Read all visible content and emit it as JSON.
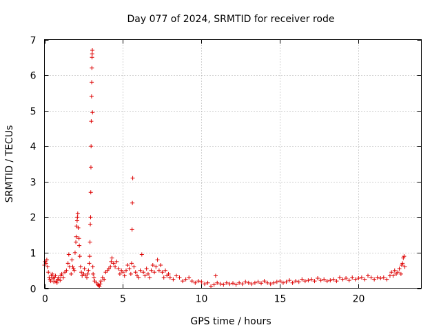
{
  "chart_data": {
    "type": "scatter",
    "title": "Day 077 of 2024, SRMTID for receiver rode",
    "xlabel": "GPS time / hours",
    "ylabel": "SRMTID / TECUs",
    "xlim": [
      0,
      24
    ],
    "ylim": [
      0,
      7
    ],
    "xticks": [
      0,
      5,
      10,
      15,
      20
    ],
    "yticks": [
      0,
      1,
      2,
      3,
      4,
      5,
      6,
      7
    ],
    "xtick_labels": [
      "0",
      "5",
      "10",
      "15",
      "20"
    ],
    "ytick_labels": [
      "0",
      "1",
      "2",
      "3",
      "4",
      "5",
      "6",
      "7"
    ],
    "grid": true,
    "marker": "+",
    "series": [
      {
        "name": "SRMTID",
        "color": "#dd0000",
        "points": [
          [
            0.0,
            0.65
          ],
          [
            0.05,
            0.75
          ],
          [
            0.1,
            0.7
          ],
          [
            0.15,
            0.8
          ],
          [
            0.2,
            0.6
          ],
          [
            0.25,
            0.45
          ],
          [
            0.3,
            0.3
          ],
          [
            0.35,
            0.25
          ],
          [
            0.4,
            0.2
          ],
          [
            0.45,
            0.35
          ],
          [
            0.5,
            0.4
          ],
          [
            0.55,
            0.28
          ],
          [
            0.6,
            0.18
          ],
          [
            0.65,
            0.3
          ],
          [
            0.7,
            0.35
          ],
          [
            0.75,
            0.2
          ],
          [
            0.8,
            0.15
          ],
          [
            0.85,
            0.25
          ],
          [
            0.9,
            0.3
          ],
          [
            1.0,
            0.22
          ],
          [
            1.05,
            0.35
          ],
          [
            1.1,
            0.4
          ],
          [
            1.2,
            0.3
          ],
          [
            1.3,
            0.45
          ],
          [
            1.4,
            0.5
          ],
          [
            1.5,
            0.7
          ],
          [
            1.55,
            0.95
          ],
          [
            1.6,
            0.6
          ],
          [
            1.7,
            0.4
          ],
          [
            1.75,
            0.8
          ],
          [
            1.8,
            0.6
          ],
          [
            1.85,
            0.55
          ],
          [
            1.9,
            0.5
          ],
          [
            1.95,
            1.0
          ],
          [
            2.0,
            1.3
          ],
          [
            2.02,
            1.45
          ],
          [
            2.05,
            1.75
          ],
          [
            2.08,
            1.9
          ],
          [
            2.1,
            2.0
          ],
          [
            2.12,
            2.1
          ],
          [
            2.15,
            1.7
          ],
          [
            2.2,
            1.4
          ],
          [
            2.22,
            1.2
          ],
          [
            2.25,
            0.9
          ],
          [
            2.3,
            0.6
          ],
          [
            2.35,
            0.45
          ],
          [
            2.4,
            0.35
          ],
          [
            2.5,
            0.4
          ],
          [
            2.55,
            0.55
          ],
          [
            2.6,
            0.35
          ],
          [
            2.7,
            0.3
          ],
          [
            2.75,
            0.4
          ],
          [
            2.8,
            0.5
          ],
          [
            2.85,
            0.7
          ],
          [
            2.88,
            0.9
          ],
          [
            2.9,
            1.3
          ],
          [
            2.92,
            1.8
          ],
          [
            2.94,
            2.0
          ],
          [
            2.95,
            2.7
          ],
          [
            2.96,
            3.4
          ],
          [
            2.97,
            4.0
          ],
          [
            2.98,
            4.7
          ],
          [
            3.0,
            5.4
          ],
          [
            3.01,
            5.8
          ],
          [
            3.02,
            6.2
          ],
          [
            3.03,
            6.5
          ],
          [
            3.04,
            6.6
          ],
          [
            3.05,
            6.7
          ],
          [
            3.06,
            4.95
          ],
          [
            3.08,
            0.6
          ],
          [
            3.1,
            0.4
          ],
          [
            3.15,
            0.3
          ],
          [
            3.2,
            0.2
          ],
          [
            3.3,
            0.15
          ],
          [
            3.4,
            0.1
          ],
          [
            3.45,
            0.08
          ],
          [
            3.5,
            0.05
          ],
          [
            3.55,
            0.12
          ],
          [
            3.6,
            0.2
          ],
          [
            3.7,
            0.3
          ],
          [
            3.8,
            0.25
          ],
          [
            3.9,
            0.45
          ],
          [
            4.0,
            0.5
          ],
          [
            4.1,
            0.55
          ],
          [
            4.2,
            0.6
          ],
          [
            4.25,
            0.75
          ],
          [
            4.3,
            0.85
          ],
          [
            4.4,
            0.7
          ],
          [
            4.5,
            0.6
          ],
          [
            4.6,
            0.75
          ],
          [
            4.7,
            0.55
          ],
          [
            4.8,
            0.4
          ],
          [
            4.9,
            0.5
          ],
          [
            5.0,
            0.45
          ],
          [
            5.1,
            0.35
          ],
          [
            5.2,
            0.5
          ],
          [
            5.3,
            0.65
          ],
          [
            5.4,
            0.55
          ],
          [
            5.5,
            0.4
          ],
          [
            5.55,
            0.7
          ],
          [
            5.58,
            1.65
          ],
          [
            5.6,
            2.4
          ],
          [
            5.62,
            3.1
          ],
          [
            5.7,
            0.6
          ],
          [
            5.8,
            0.45
          ],
          [
            5.9,
            0.35
          ],
          [
            6.0,
            0.3
          ],
          [
            6.1,
            0.5
          ],
          [
            6.2,
            0.95
          ],
          [
            6.3,
            0.45
          ],
          [
            6.4,
            0.35
          ],
          [
            6.5,
            0.55
          ],
          [
            6.6,
            0.4
          ],
          [
            6.7,
            0.3
          ],
          [
            6.8,
            0.5
          ],
          [
            6.9,
            0.65
          ],
          [
            7.0,
            0.45
          ],
          [
            7.1,
            0.6
          ],
          [
            7.2,
            0.8
          ],
          [
            7.3,
            0.5
          ],
          [
            7.4,
            0.65
          ],
          [
            7.5,
            0.45
          ],
          [
            7.6,
            0.3
          ],
          [
            7.7,
            0.5
          ],
          [
            7.8,
            0.35
          ],
          [
            7.9,
            0.4
          ],
          [
            8.0,
            0.3
          ],
          [
            8.2,
            0.25
          ],
          [
            8.4,
            0.35
          ],
          [
            8.6,
            0.3
          ],
          [
            8.8,
            0.2
          ],
          [
            9.0,
            0.25
          ],
          [
            9.2,
            0.3
          ],
          [
            9.4,
            0.2
          ],
          [
            9.6,
            0.15
          ],
          [
            9.8,
            0.2
          ],
          [
            10.0,
            0.18
          ],
          [
            10.2,
            0.12
          ],
          [
            10.4,
            0.15
          ],
          [
            10.6,
            0.05
          ],
          [
            10.8,
            0.1
          ],
          [
            10.9,
            0.35
          ],
          [
            11.0,
            0.15
          ],
          [
            11.2,
            0.12
          ],
          [
            11.4,
            0.1
          ],
          [
            11.6,
            0.15
          ],
          [
            11.8,
            0.12
          ],
          [
            12.0,
            0.14
          ],
          [
            12.2,
            0.1
          ],
          [
            12.4,
            0.15
          ],
          [
            12.6,
            0.12
          ],
          [
            12.8,
            0.18
          ],
          [
            13.0,
            0.15
          ],
          [
            13.2,
            0.12
          ],
          [
            13.4,
            0.15
          ],
          [
            13.6,
            0.18
          ],
          [
            13.8,
            0.14
          ],
          [
            14.0,
            0.2
          ],
          [
            14.2,
            0.15
          ],
          [
            14.4,
            0.12
          ],
          [
            14.6,
            0.15
          ],
          [
            14.8,
            0.18
          ],
          [
            15.0,
            0.2
          ],
          [
            15.2,
            0.15
          ],
          [
            15.4,
            0.18
          ],
          [
            15.6,
            0.22
          ],
          [
            15.8,
            0.15
          ],
          [
            16.0,
            0.2
          ],
          [
            16.2,
            0.18
          ],
          [
            16.4,
            0.25
          ],
          [
            16.6,
            0.2
          ],
          [
            16.8,
            0.22
          ],
          [
            17.0,
            0.25
          ],
          [
            17.2,
            0.2
          ],
          [
            17.4,
            0.28
          ],
          [
            17.6,
            0.22
          ],
          [
            17.8,
            0.25
          ],
          [
            18.0,
            0.2
          ],
          [
            18.2,
            0.22
          ],
          [
            18.4,
            0.25
          ],
          [
            18.6,
            0.2
          ],
          [
            18.8,
            0.3
          ],
          [
            19.0,
            0.25
          ],
          [
            19.2,
            0.28
          ],
          [
            19.4,
            0.22
          ],
          [
            19.6,
            0.3
          ],
          [
            19.8,
            0.25
          ],
          [
            20.0,
            0.28
          ],
          [
            20.2,
            0.3
          ],
          [
            20.4,
            0.25
          ],
          [
            20.6,
            0.35
          ],
          [
            20.8,
            0.3
          ],
          [
            21.0,
            0.25
          ],
          [
            21.2,
            0.3
          ],
          [
            21.4,
            0.28
          ],
          [
            21.6,
            0.3
          ],
          [
            21.8,
            0.25
          ],
          [
            22.0,
            0.35
          ],
          [
            22.1,
            0.45
          ],
          [
            22.2,
            0.35
          ],
          [
            22.3,
            0.5
          ],
          [
            22.4,
            0.4
          ],
          [
            22.5,
            0.45
          ],
          [
            22.6,
            0.55
          ],
          [
            22.7,
            0.4
          ],
          [
            22.75,
            0.65
          ],
          [
            22.8,
            0.7
          ],
          [
            22.85,
            0.85
          ],
          [
            22.9,
            0.9
          ],
          [
            22.95,
            0.6
          ]
        ]
      }
    ]
  }
}
